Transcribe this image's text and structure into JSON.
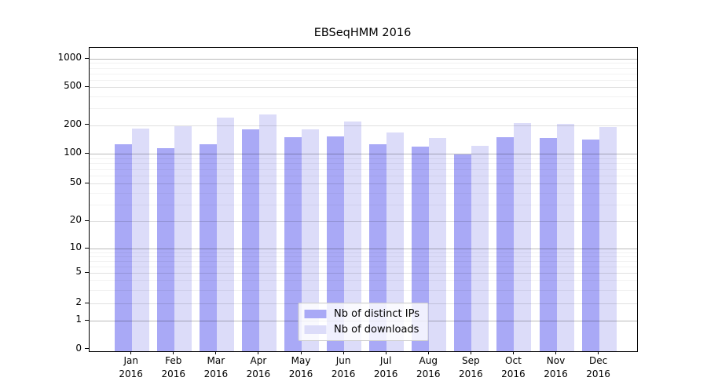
{
  "chart_data": {
    "type": "bar",
    "title": "EBSeqHMM 2016",
    "year": "2016",
    "categories": [
      "Jan",
      "Feb",
      "Mar",
      "Apr",
      "May",
      "Jun",
      "Jul",
      "Aug",
      "Sep",
      "Oct",
      "Nov",
      "Dec"
    ],
    "series": [
      {
        "name": "Nb of distinct IPs",
        "color": "#a9a9f6",
        "values": [
          125,
          115,
          126,
          180,
          148,
          152,
          126,
          118,
          98,
          148,
          145,
          140
        ]
      },
      {
        "name": "Nb of downloads",
        "color": "#dcdcf9",
        "values": [
          185,
          195,
          240,
          260,
          182,
          220,
          167,
          145,
          120,
          210,
          205,
          192
        ]
      }
    ],
    "yscale": "log",
    "y_ticks": [
      1000,
      500,
      200,
      100,
      50,
      20,
      10,
      5,
      2,
      1,
      0
    ],
    "ylim": [
      0,
      1300
    ],
    "xlabel": "",
    "ylabel": "",
    "grid": "horizontal log major+minor",
    "legend_position": "lower center"
  }
}
